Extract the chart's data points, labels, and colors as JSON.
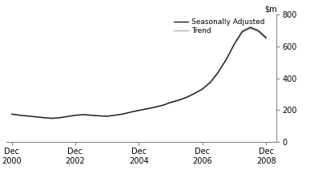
{
  "title": "",
  "ylim": [
    0,
    800
  ],
  "yticks": [
    0,
    200,
    400,
    600,
    800
  ],
  "xlim": [
    2000.75,
    2009.25
  ],
  "xtick_positions": [
    2000.917,
    2002.917,
    2004.917,
    2006.917,
    2008.917
  ],
  "xtick_labels": [
    "Dec\n2000",
    "Dec\n2002",
    "Dec\n2004",
    "Dec\n2006",
    "Dec\n2008"
  ],
  "seasonally_adjusted_color": "#1a1a1a",
  "trend_color": "#b0b0b0",
  "legend_labels": [
    "Seasonally Adjusted",
    "Trend"
  ],
  "background_color": "#ffffff",
  "seasonally_adjusted": {
    "x": [
      2000.917,
      2001.17,
      2001.42,
      2001.67,
      2001.917,
      2002.17,
      2002.42,
      2002.67,
      2002.917,
      2003.17,
      2003.42,
      2003.67,
      2003.917,
      2004.17,
      2004.42,
      2004.67,
      2004.917,
      2005.17,
      2005.42,
      2005.67,
      2005.917,
      2006.17,
      2006.42,
      2006.67,
      2006.917,
      2007.17,
      2007.42,
      2007.67,
      2007.917,
      2008.17,
      2008.42,
      2008.67,
      2008.917
    ],
    "y": [
      175,
      168,
      163,
      158,
      153,
      148,
      152,
      160,
      168,
      172,
      168,
      164,
      162,
      168,
      176,
      188,
      198,
      208,
      218,
      230,
      248,
      262,
      280,
      305,
      332,
      375,
      440,
      520,
      615,
      695,
      720,
      700,
      655
    ]
  },
  "trend": {
    "x": [
      2000.917,
      2001.17,
      2001.42,
      2001.67,
      2001.917,
      2002.17,
      2002.42,
      2002.67,
      2002.917,
      2003.17,
      2003.42,
      2003.67,
      2003.917,
      2004.17,
      2004.42,
      2004.67,
      2004.917,
      2005.17,
      2005.42,
      2005.67,
      2005.917,
      2006.17,
      2006.42,
      2006.67,
      2006.917,
      2007.17,
      2007.42,
      2007.67,
      2007.917,
      2008.17,
      2008.42,
      2008.67,
      2008.917
    ],
    "y": [
      174,
      168,
      163,
      158,
      153,
      149,
      152,
      159,
      166,
      170,
      167,
      164,
      162,
      167,
      175,
      187,
      198,
      210,
      220,
      232,
      250,
      264,
      282,
      307,
      334,
      378,
      442,
      520,
      612,
      688,
      712,
      692,
      648
    ]
  }
}
